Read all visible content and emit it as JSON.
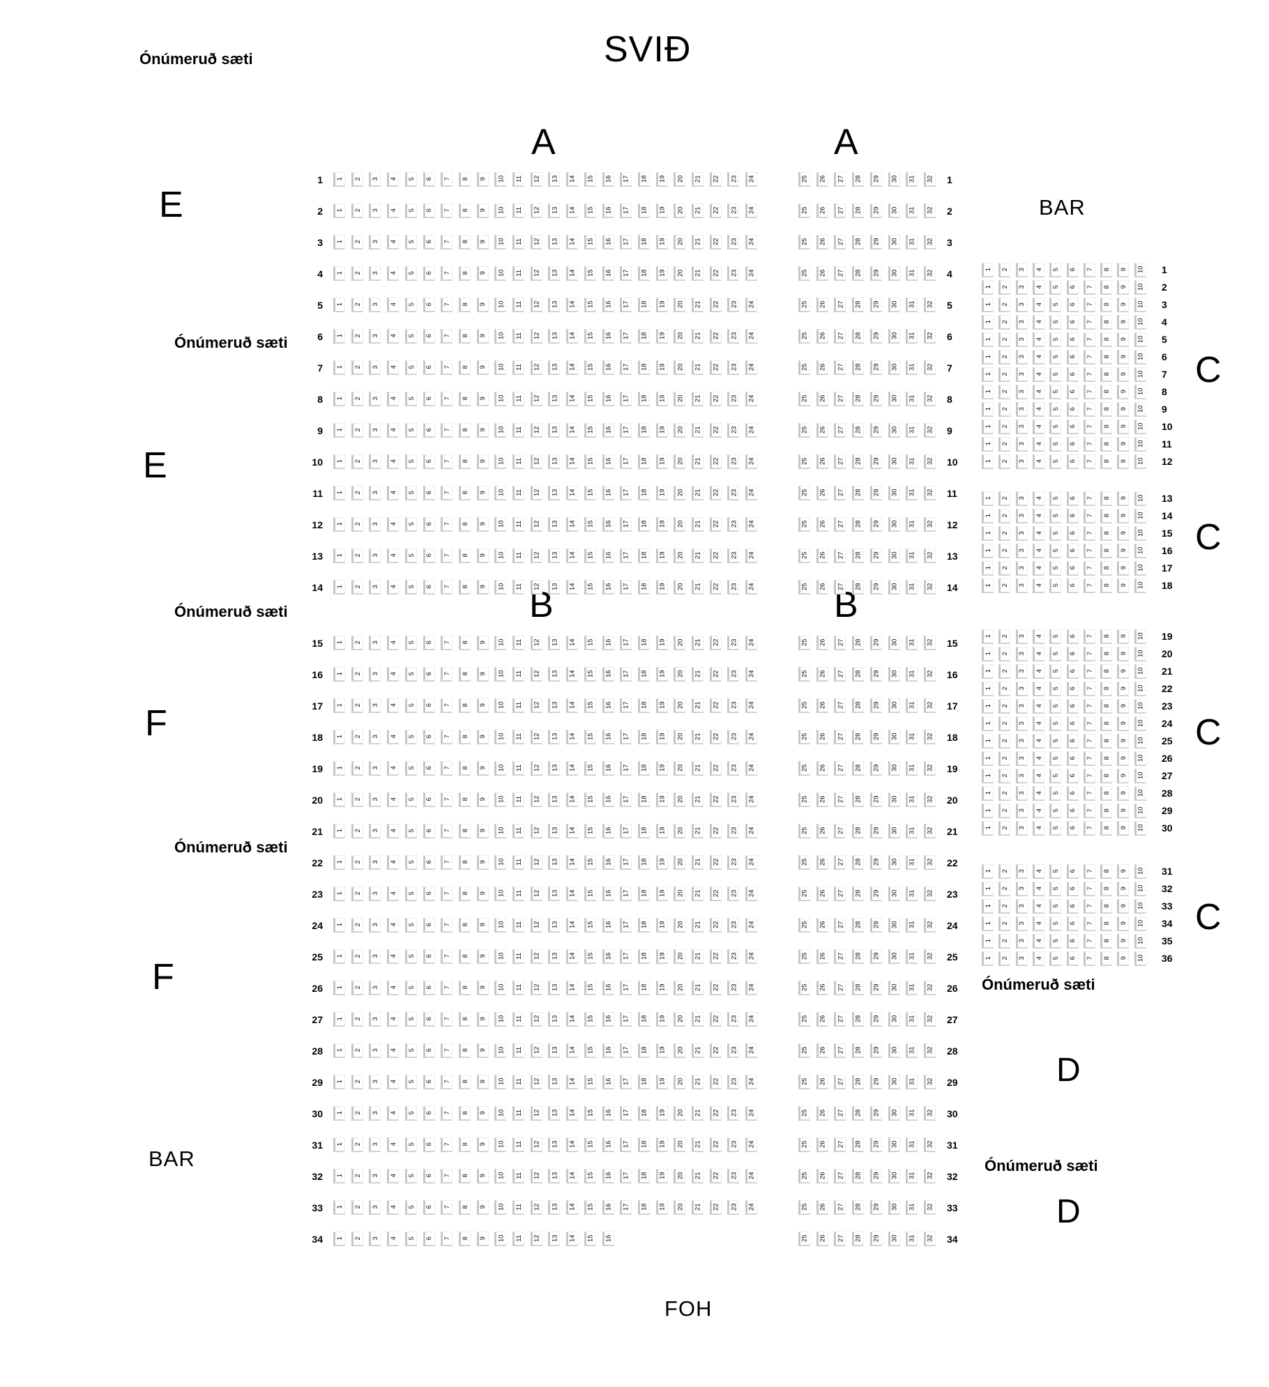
{
  "title": "SVIÐ",
  "texts": {
    "unnumbered": "Ónúmeruð sæti",
    "bar": "BAR",
    "foh": "FOH"
  },
  "section_labels": {
    "a": "A",
    "b": "B",
    "c": "C",
    "d": "D",
    "e": "E",
    "f": "F"
  },
  "main_floor": {
    "row_count": 34,
    "section_a_rows": {
      "row_start": 1,
      "row_end": 14
    },
    "section_b_rows": {
      "row_start": 15,
      "row_end": 34
    },
    "left_block": {
      "seat_start": 1,
      "seat_end": 24
    },
    "right_block": {
      "seat_start": 25,
      "seat_end": 32
    },
    "short_rows": {
      "34": {
        "left_seat_end": 16
      }
    },
    "row_numbers_shown": "both-sides"
  },
  "side_section": {
    "label": "C",
    "seats": {
      "seat_start": 1,
      "seat_end": 10
    },
    "blocks": [
      {
        "row_start": 1,
        "row_end": 12
      },
      {
        "row_start": 13,
        "row_end": 18
      },
      {
        "row_start": 19,
        "row_end": 30
      },
      {
        "row_start": 31,
        "row_end": 36
      }
    ],
    "row_numbers_shown": "right-side"
  },
  "colors": {
    "background": "#ffffff",
    "text": "#000000",
    "seat_fill": "#ffffff",
    "seat_edge": "#c6c6c6"
  }
}
